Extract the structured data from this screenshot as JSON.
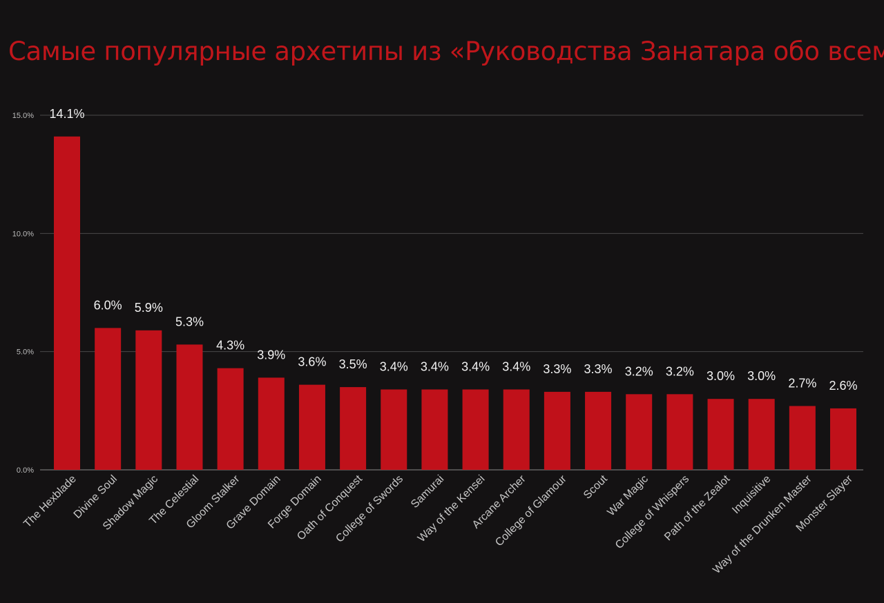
{
  "chart_data": {
    "type": "bar",
    "title": "Самые популярные архетипы из «Руководства Занатара обо всем»",
    "categories": [
      "The Hexblade",
      "Divine Soul",
      "Shadow Magic",
      "The Celestial",
      "Gloom Stalker",
      "Grave Domain",
      "Forge Domain",
      "Oath of Conquest",
      "College of Swords",
      "Samurai",
      "Way of the Kensei",
      "Arcane Archer",
      "College of Glamour",
      "Scout",
      "War Magic",
      "College of Whispers",
      "Path of the Zealot",
      "Inquisitive",
      "Way of the Drunken Master",
      "Monster Slayer"
    ],
    "values": [
      14.1,
      6.0,
      5.9,
      5.3,
      4.3,
      3.9,
      3.6,
      3.5,
      3.4,
      3.4,
      3.4,
      3.4,
      3.3,
      3.3,
      3.2,
      3.2,
      3.0,
      3.0,
      2.7,
      2.6
    ],
    "data_labels": [
      "14.1%",
      "6.0%",
      "5.9%",
      "5.3%",
      "4.3%",
      "3.9%",
      "3.6%",
      "3.5%",
      "3.4%",
      "3.4%",
      "3.4%",
      "3.4%",
      "3.3%",
      "3.3%",
      "3.2%",
      "3.2%",
      "3.0%",
      "3.0%",
      "2.7%",
      "2.6%"
    ],
    "y_ticks": [
      0,
      5,
      10,
      15
    ],
    "y_tick_labels": [
      "0.0%",
      "5.0%",
      "10.0%",
      "15.0%"
    ],
    "ylim": [
      0,
      15
    ],
    "xlabel": "",
    "ylabel": "",
    "grid": true,
    "legend": "none",
    "colors": {
      "bar": "#c0111a",
      "background": "#141213",
      "title": "#c0161b",
      "grid": "#4a4a4a"
    }
  }
}
